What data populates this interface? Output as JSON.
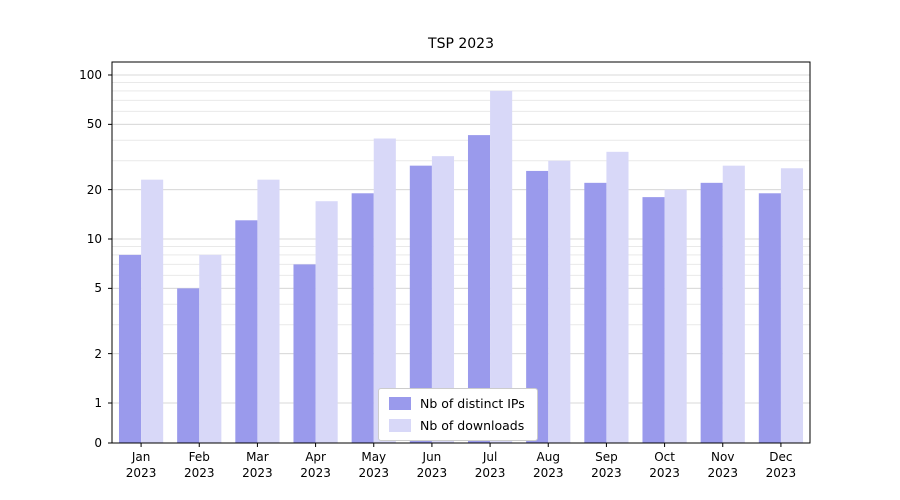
{
  "chart_data": {
    "type": "bar",
    "title": "TSP 2023",
    "categories": [
      "Jan 2023",
      "Feb 2023",
      "Mar 2023",
      "Apr 2023",
      "May 2023",
      "Jun 2023",
      "Jul 2023",
      "Aug 2023",
      "Sep 2023",
      "Oct 2023",
      "Nov 2023",
      "Dec 2023"
    ],
    "series": [
      {
        "name": "Nb of distinct IPs",
        "color": "#9a9aec",
        "values": [
          8,
          5,
          13,
          7,
          19,
          28,
          43,
          26,
          22,
          18,
          22,
          19
        ]
      },
      {
        "name": "Nb of downloads",
        "color": "#d8d8f8",
        "values": [
          23,
          8,
          23,
          17,
          41,
          32,
          80,
          30,
          34,
          20,
          28,
          27
        ]
      }
    ],
    "yscale": "symlog",
    "y_ticks": [
      0,
      1,
      2,
      5,
      10,
      20,
      50,
      100
    ],
    "ylim": [
      0,
      120
    ],
    "xlabel": "",
    "ylabel": "",
    "grid": true,
    "legend_position": "lower center"
  }
}
